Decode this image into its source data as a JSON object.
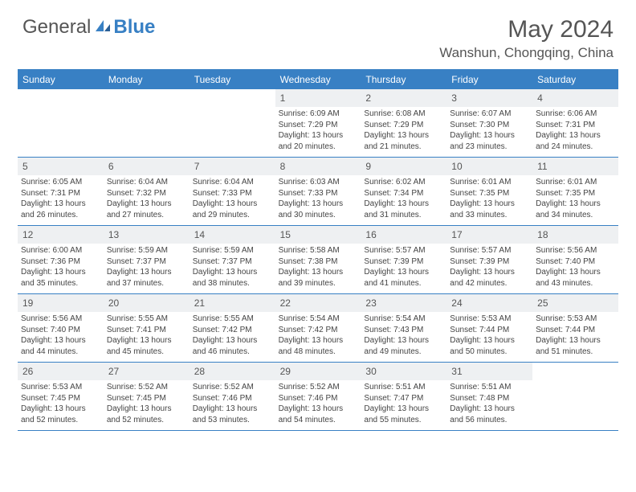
{
  "brand": {
    "part1": "General",
    "part2": "Blue"
  },
  "title": "May 2024",
  "location": "Wanshun, Chongqing, China",
  "header_bg": "#3880c4",
  "day_names": [
    "Sunday",
    "Monday",
    "Tuesday",
    "Wednesday",
    "Thursday",
    "Friday",
    "Saturday"
  ],
  "weeks": [
    [
      {
        "day": "",
        "lines": []
      },
      {
        "day": "",
        "lines": []
      },
      {
        "day": "",
        "lines": []
      },
      {
        "day": "1",
        "lines": [
          "Sunrise: 6:09 AM",
          "Sunset: 7:29 PM",
          "Daylight: 13 hours",
          "and 20 minutes."
        ]
      },
      {
        "day": "2",
        "lines": [
          "Sunrise: 6:08 AM",
          "Sunset: 7:29 PM",
          "Daylight: 13 hours",
          "and 21 minutes."
        ]
      },
      {
        "day": "3",
        "lines": [
          "Sunrise: 6:07 AM",
          "Sunset: 7:30 PM",
          "Daylight: 13 hours",
          "and 23 minutes."
        ]
      },
      {
        "day": "4",
        "lines": [
          "Sunrise: 6:06 AM",
          "Sunset: 7:31 PM",
          "Daylight: 13 hours",
          "and 24 minutes."
        ]
      }
    ],
    [
      {
        "day": "5",
        "lines": [
          "Sunrise: 6:05 AM",
          "Sunset: 7:31 PM",
          "Daylight: 13 hours",
          "and 26 minutes."
        ]
      },
      {
        "day": "6",
        "lines": [
          "Sunrise: 6:04 AM",
          "Sunset: 7:32 PM",
          "Daylight: 13 hours",
          "and 27 minutes."
        ]
      },
      {
        "day": "7",
        "lines": [
          "Sunrise: 6:04 AM",
          "Sunset: 7:33 PM",
          "Daylight: 13 hours",
          "and 29 minutes."
        ]
      },
      {
        "day": "8",
        "lines": [
          "Sunrise: 6:03 AM",
          "Sunset: 7:33 PM",
          "Daylight: 13 hours",
          "and 30 minutes."
        ]
      },
      {
        "day": "9",
        "lines": [
          "Sunrise: 6:02 AM",
          "Sunset: 7:34 PM",
          "Daylight: 13 hours",
          "and 31 minutes."
        ]
      },
      {
        "day": "10",
        "lines": [
          "Sunrise: 6:01 AM",
          "Sunset: 7:35 PM",
          "Daylight: 13 hours",
          "and 33 minutes."
        ]
      },
      {
        "day": "11",
        "lines": [
          "Sunrise: 6:01 AM",
          "Sunset: 7:35 PM",
          "Daylight: 13 hours",
          "and 34 minutes."
        ]
      }
    ],
    [
      {
        "day": "12",
        "lines": [
          "Sunrise: 6:00 AM",
          "Sunset: 7:36 PM",
          "Daylight: 13 hours",
          "and 35 minutes."
        ]
      },
      {
        "day": "13",
        "lines": [
          "Sunrise: 5:59 AM",
          "Sunset: 7:37 PM",
          "Daylight: 13 hours",
          "and 37 minutes."
        ]
      },
      {
        "day": "14",
        "lines": [
          "Sunrise: 5:59 AM",
          "Sunset: 7:37 PM",
          "Daylight: 13 hours",
          "and 38 minutes."
        ]
      },
      {
        "day": "15",
        "lines": [
          "Sunrise: 5:58 AM",
          "Sunset: 7:38 PM",
          "Daylight: 13 hours",
          "and 39 minutes."
        ]
      },
      {
        "day": "16",
        "lines": [
          "Sunrise: 5:57 AM",
          "Sunset: 7:39 PM",
          "Daylight: 13 hours",
          "and 41 minutes."
        ]
      },
      {
        "day": "17",
        "lines": [
          "Sunrise: 5:57 AM",
          "Sunset: 7:39 PM",
          "Daylight: 13 hours",
          "and 42 minutes."
        ]
      },
      {
        "day": "18",
        "lines": [
          "Sunrise: 5:56 AM",
          "Sunset: 7:40 PM",
          "Daylight: 13 hours",
          "and 43 minutes."
        ]
      }
    ],
    [
      {
        "day": "19",
        "lines": [
          "Sunrise: 5:56 AM",
          "Sunset: 7:40 PM",
          "Daylight: 13 hours",
          "and 44 minutes."
        ]
      },
      {
        "day": "20",
        "lines": [
          "Sunrise: 5:55 AM",
          "Sunset: 7:41 PM",
          "Daylight: 13 hours",
          "and 45 minutes."
        ]
      },
      {
        "day": "21",
        "lines": [
          "Sunrise: 5:55 AM",
          "Sunset: 7:42 PM",
          "Daylight: 13 hours",
          "and 46 minutes."
        ]
      },
      {
        "day": "22",
        "lines": [
          "Sunrise: 5:54 AM",
          "Sunset: 7:42 PM",
          "Daylight: 13 hours",
          "and 48 minutes."
        ]
      },
      {
        "day": "23",
        "lines": [
          "Sunrise: 5:54 AM",
          "Sunset: 7:43 PM",
          "Daylight: 13 hours",
          "and 49 minutes."
        ]
      },
      {
        "day": "24",
        "lines": [
          "Sunrise: 5:53 AM",
          "Sunset: 7:44 PM",
          "Daylight: 13 hours",
          "and 50 minutes."
        ]
      },
      {
        "day": "25",
        "lines": [
          "Sunrise: 5:53 AM",
          "Sunset: 7:44 PM",
          "Daylight: 13 hours",
          "and 51 minutes."
        ]
      }
    ],
    [
      {
        "day": "26",
        "lines": [
          "Sunrise: 5:53 AM",
          "Sunset: 7:45 PM",
          "Daylight: 13 hours",
          "and 52 minutes."
        ]
      },
      {
        "day": "27",
        "lines": [
          "Sunrise: 5:52 AM",
          "Sunset: 7:45 PM",
          "Daylight: 13 hours",
          "and 52 minutes."
        ]
      },
      {
        "day": "28",
        "lines": [
          "Sunrise: 5:52 AM",
          "Sunset: 7:46 PM",
          "Daylight: 13 hours",
          "and 53 minutes."
        ]
      },
      {
        "day": "29",
        "lines": [
          "Sunrise: 5:52 AM",
          "Sunset: 7:46 PM",
          "Daylight: 13 hours",
          "and 54 minutes."
        ]
      },
      {
        "day": "30",
        "lines": [
          "Sunrise: 5:51 AM",
          "Sunset: 7:47 PM",
          "Daylight: 13 hours",
          "and 55 minutes."
        ]
      },
      {
        "day": "31",
        "lines": [
          "Sunrise: 5:51 AM",
          "Sunset: 7:48 PM",
          "Daylight: 13 hours",
          "and 56 minutes."
        ]
      },
      {
        "day": "",
        "lines": []
      }
    ]
  ]
}
